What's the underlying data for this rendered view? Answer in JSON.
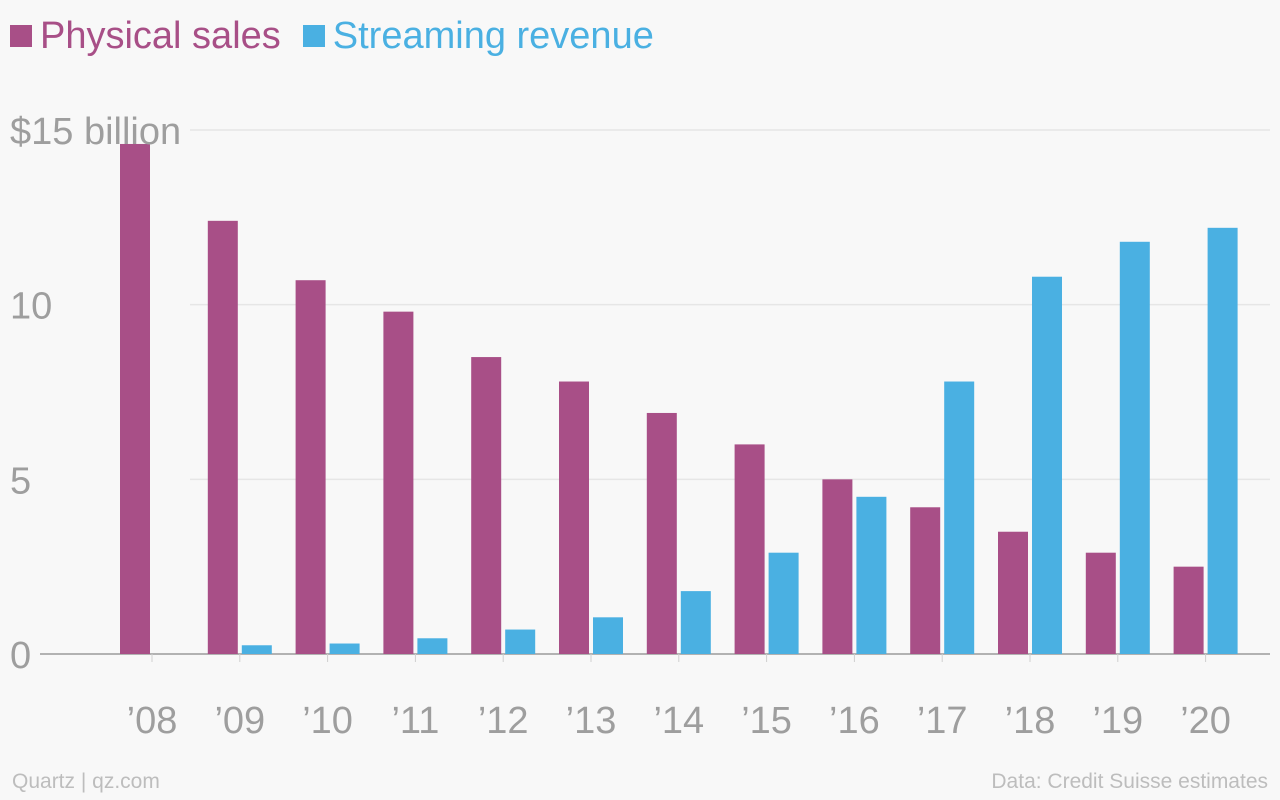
{
  "chart_data": {
    "type": "bar",
    "categories": [
      "’08",
      "’09",
      "’10",
      "’11",
      "’12",
      "’13",
      "’14",
      "’15",
      "’16",
      "’17",
      "’18",
      "’19",
      "’20"
    ],
    "series": [
      {
        "name": "Physical sales",
        "color": "#a84f87",
        "values": [
          14.6,
          12.4,
          10.7,
          9.8,
          8.5,
          7.8,
          6.9,
          6.0,
          5.0,
          4.2,
          3.5,
          2.9,
          2.5
        ]
      },
      {
        "name": "Streaming revenue",
        "color": "#4ab0e2",
        "values": [
          0,
          0.25,
          0.3,
          0.45,
          0.7,
          1.05,
          1.8,
          2.9,
          4.5,
          7.8,
          10.8,
          11.8,
          12.2
        ]
      }
    ],
    "yticks": [
      {
        "value": 0,
        "label": "0"
      },
      {
        "value": 5,
        "label": "5"
      },
      {
        "value": 10,
        "label": "10"
      },
      {
        "value": 15,
        "label": "$15 billion"
      }
    ],
    "ylim": [
      0,
      15
    ],
    "xlabel": "",
    "ylabel": "",
    "legend_position": "top-left",
    "grid": true
  },
  "footer": {
    "source_left": "Quartz | qz.com",
    "source_right": "Data: Credit Suisse estimates"
  }
}
